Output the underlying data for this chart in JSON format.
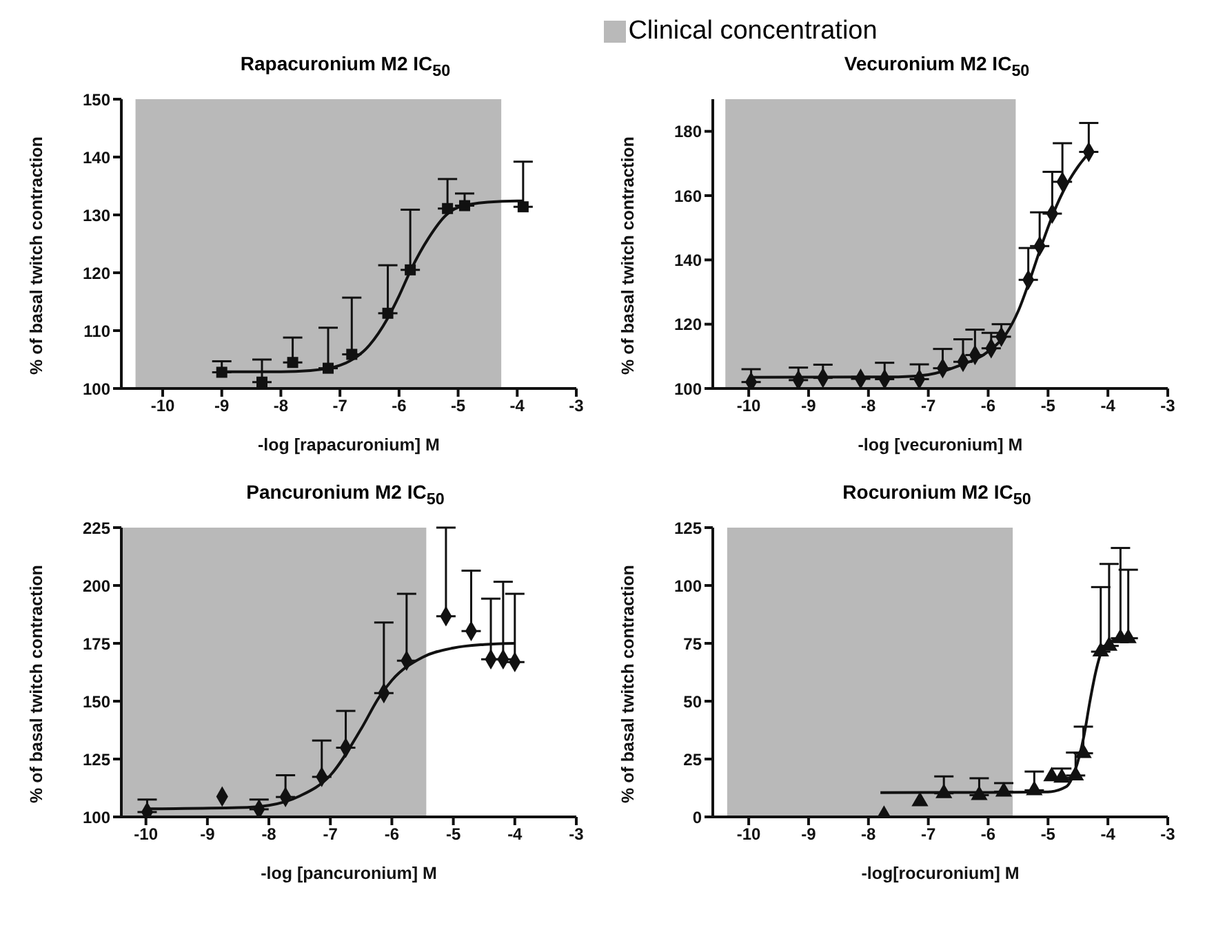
{
  "chart_data": [
    {
      "type": "scatter",
      "title": "Rapacuronium M2 IC$_{50}$",
      "xlabel": "-log [rapacuronium] M",
      "ylabel": "% of basal twitch contraction",
      "xlim": [
        -10.7,
        -3
      ],
      "xticks": [
        -10,
        -9,
        -8,
        -7,
        -6,
        -5,
        -4,
        -3
      ],
      "ylim": [
        100,
        150
      ],
      "yticks": [
        100,
        110,
        120,
        130,
        140,
        150
      ],
      "bands": [
        {
          "axis": "x",
          "from": -10.46,
          "to": -4.27,
          "label": "Clinical concentration",
          "color": "#b9b9b9"
        }
      ],
      "series": [
        {
          "type": "scatter",
          "marker": "square",
          "color": "#111111",
          "x": [
            -9.0,
            -8.32,
            -7.8,
            -7.2,
            -6.8,
            -6.19,
            -5.81,
            -5.18,
            -4.89,
            -3.9
          ],
          "values": [
            102.8,
            101.1,
            104.5,
            103.5,
            105.9,
            113.0,
            120.5,
            131.1,
            131.6,
            131.4
          ],
          "errors": [
            [
              102.8,
              104.7
            ],
            [
              101.1,
              105.0
            ],
            [
              104.5,
              108.8
            ],
            [
              103.5,
              110.5
            ],
            [
              105.9,
              115.7
            ],
            [
              113.0,
              121.3
            ],
            [
              120.5,
              130.9
            ],
            [
              131.1,
              136.2
            ],
            [
              131.6,
              133.7
            ],
            [
              131.4,
              139.2
            ]
          ]
        },
        {
          "type": "line",
          "color": "#111111",
          "x": [
            -9,
            -8,
            -7.5,
            -7,
            -6.5,
            -6.2,
            -6,
            -5.8,
            -5.5,
            -5.2,
            -5,
            -4.5,
            -4,
            -3.9
          ],
          "values": [
            102.9,
            102.9,
            103.1,
            104,
            107.5,
            112,
            116,
            120.5,
            126,
            130,
            131.3,
            132.2,
            132.4,
            132.4
          ]
        }
      ]
    },
    {
      "type": "scatter",
      "title": "Vecuronium M2 IC$_{50}$",
      "xlabel": "-log [vecuronium] M",
      "ylabel": "% of basal twitch contraction",
      "xlim": [
        -10.6,
        -3
      ],
      "xticks": [
        -10,
        -9,
        -8,
        -7,
        -6,
        -5,
        -4,
        -3
      ],
      "ylim": [
        100,
        190
      ],
      "yticks": [
        100,
        120,
        140,
        160,
        180
      ],
      "bands": [
        {
          "axis": "x",
          "from": -10.39,
          "to": -5.54,
          "color": "#b9b9b9"
        }
      ],
      "series": [
        {
          "type": "scatter",
          "marker": "diamond",
          "color": "#111111",
          "x": [
            -9.96,
            -9.17,
            -8.76,
            -8.13,
            -7.73,
            -7.15,
            -6.76,
            -6.42,
            -6.22,
            -5.95,
            -5.78,
            -5.33,
            -5.14,
            -4.93,
            -4.76,
            -4.32
          ],
          "values": [
            102.0,
            102.6,
            103.3,
            103.0,
            102.9,
            102.9,
            106.3,
            108.3,
            110.4,
            112.5,
            116.1,
            133.8,
            144.3,
            154.4,
            164.3,
            173.6
          ],
          "errors": [
            [
              102.0,
              106.0
            ],
            [
              102.6,
              106.5
            ],
            [
              103.3,
              107.4
            ],
            [
              103.0,
              103.6
            ],
            [
              102.9,
              108.0
            ],
            [
              102.9,
              107.5
            ],
            [
              106.3,
              112.3
            ],
            [
              108.3,
              115.3
            ],
            [
              110.4,
              118.3
            ],
            [
              112.5,
              117.3
            ],
            [
              116.1,
              120.0
            ],
            [
              133.8,
              143.7
            ],
            [
              144.3,
              154.8
            ],
            [
              154.4,
              167.4
            ],
            [
              164.3,
              176.3
            ],
            [
              173.6,
              182.6
            ]
          ]
        },
        {
          "type": "line",
          "color": "#111111",
          "x": [
            -10,
            -7.5,
            -7,
            -6.5,
            -6,
            -5.7,
            -5.5,
            -5.3,
            -5.1,
            -4.9,
            -4.7,
            -4.5,
            -4.3
          ],
          "values": [
            103.5,
            103.6,
            104.3,
            107,
            111.5,
            117,
            124,
            134,
            145,
            155,
            163,
            169,
            173.6
          ]
        }
      ]
    },
    {
      "type": "scatter",
      "title": "Pancuronium M2 IC$_{50}$",
      "xlabel": "-log [pancuronium] M",
      "ylabel": "% of basal twitch contraction",
      "xlim": [
        -10.4,
        -3
      ],
      "xticks": [
        -10,
        -9,
        -8,
        -7,
        -6,
        -5,
        -4,
        -3
      ],
      "ylim": [
        100,
        225
      ],
      "yticks": [
        100,
        125,
        150,
        175,
        200,
        225
      ],
      "bands": [
        {
          "axis": "x",
          "from": -10.39,
          "to": -5.44,
          "color": "#b9b9b9"
        }
      ],
      "series": [
        {
          "type": "scatter",
          "marker": "diamond",
          "color": "#111111",
          "x": [
            -9.98,
            -8.76,
            -8.16,
            -7.73,
            -7.14,
            -6.75,
            -6.13,
            -5.76,
            -5.12,
            -4.71,
            -4.39,
            -4.19,
            -4.0
          ],
          "values": [
            102.1,
            108.8,
            103.3,
            108.6,
            117.3,
            129.9,
            153.5,
            167.5,
            186.7,
            180.3,
            168.1,
            168.1,
            166.9
          ],
          "errors": [
            [
              102.1,
              107.5
            ],
            null,
            [
              103.3,
              107.5
            ],
            [
              108.6,
              118.0
            ],
            [
              117.3,
              133.0
            ],
            [
              129.9,
              145.8
            ],
            [
              153.5,
              184.0
            ],
            [
              167.5,
              196.4
            ],
            [
              186.7,
              225.0
            ],
            [
              180.3,
              206.4
            ],
            [
              168.1,
              194.3
            ],
            [
              168.1,
              201.6
            ],
            [
              166.9,
              196.4
            ]
          ]
        },
        {
          "type": "line",
          "color": "#111111",
          "x": [
            -10,
            -8.5,
            -8,
            -7.5,
            -7,
            -6.5,
            -6.2,
            -6,
            -5.5,
            -5,
            -4.5,
            -4
          ],
          "values": [
            103.5,
            104,
            105,
            109,
            118,
            138,
            152,
            159,
            169,
            173,
            174.5,
            175
          ]
        }
      ]
    },
    {
      "type": "scatter",
      "title": "Rocuronium M2 IC$_{50}$",
      "xlabel": "-log[rocuronium] M",
      "ylabel": "% of basal twitch contraction",
      "xlim": [
        -10.6,
        -3
      ],
      "xticks": [
        -10,
        -9,
        -8,
        -7,
        -6,
        -5,
        -4,
        -3
      ],
      "ylim": [
        0,
        125
      ],
      "yticks": [
        0,
        25,
        50,
        75,
        100,
        125
      ],
      "bands": [
        {
          "axis": "x",
          "from": -10.36,
          "to": -5.59,
          "color": "#b9b9b9"
        }
      ],
      "series": [
        {
          "type": "scatter",
          "marker": "triangle",
          "color": "#111111",
          "x": [
            -7.74,
            -7.14,
            -6.74,
            -6.15,
            -5.74,
            -5.23,
            -4.94,
            -4.77,
            -4.54,
            -4.41,
            -4.12,
            -3.98,
            -3.79,
            -3.66
          ],
          "values": [
            0.8,
            6.7,
            10.2,
            9.4,
            10.9,
            11.5,
            17.5,
            16.9,
            17.9,
            27.5,
            71.4,
            73.9,
            77.2,
            77.2
          ],
          "errors": [
            null,
            null,
            [
              10.2,
              17.5
            ],
            [
              9.4,
              16.7
            ],
            [
              10.9,
              14.6
            ],
            [
              11.5,
              19.6
            ],
            null,
            [
              16.9,
              20.9
            ],
            [
              17.9,
              27.8
            ],
            [
              27.5,
              39.0
            ],
            [
              71.4,
              99.3
            ],
            [
              73.9,
              109.3
            ],
            [
              77.2,
              116.2
            ],
            [
              77.2,
              106.8
            ]
          ]
        },
        {
          "type": "line",
          "color": "#111111",
          "x": [
            -7.8,
            -6,
            -5,
            -4.7,
            -4.55,
            -4.4,
            -4.3,
            -4.2,
            -4.1,
            -4.0,
            -3.8,
            -3.66
          ],
          "values": [
            10.5,
            10.6,
            10.8,
            13,
            20,
            35,
            50,
            63,
            72,
            75,
            77,
            77.5
          ]
        }
      ]
    }
  ]
}
